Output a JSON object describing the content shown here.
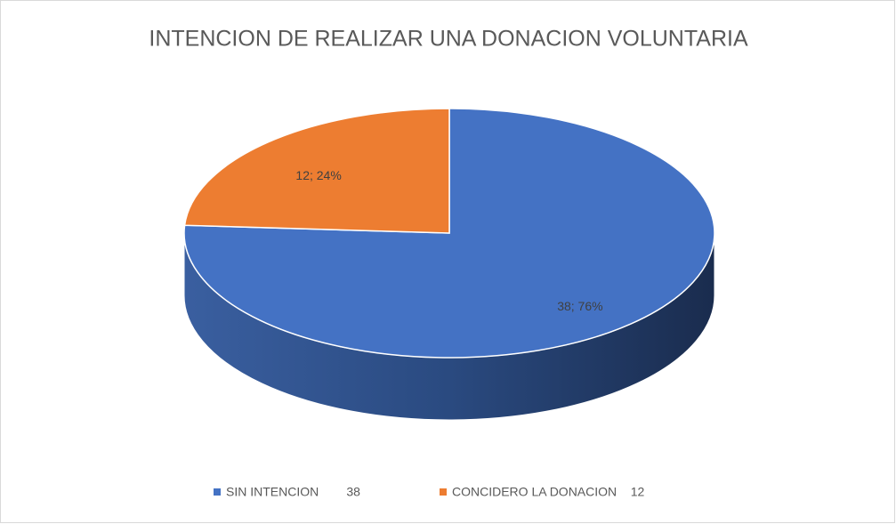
{
  "chart_data": {
    "type": "pie",
    "title": "INTENCION DE REALIZAR UNA DONACION VOLUNTARIA",
    "categories": [
      "SIN INTENCION        38",
      "CONCIDERO LA DONACION    12"
    ],
    "values": [
      38,
      12
    ],
    "value_labels": [
      "38; 76%",
      "12; 24%"
    ],
    "colors": [
      "#4472c4",
      "#ed7d31"
    ],
    "legend": "bottom"
  }
}
